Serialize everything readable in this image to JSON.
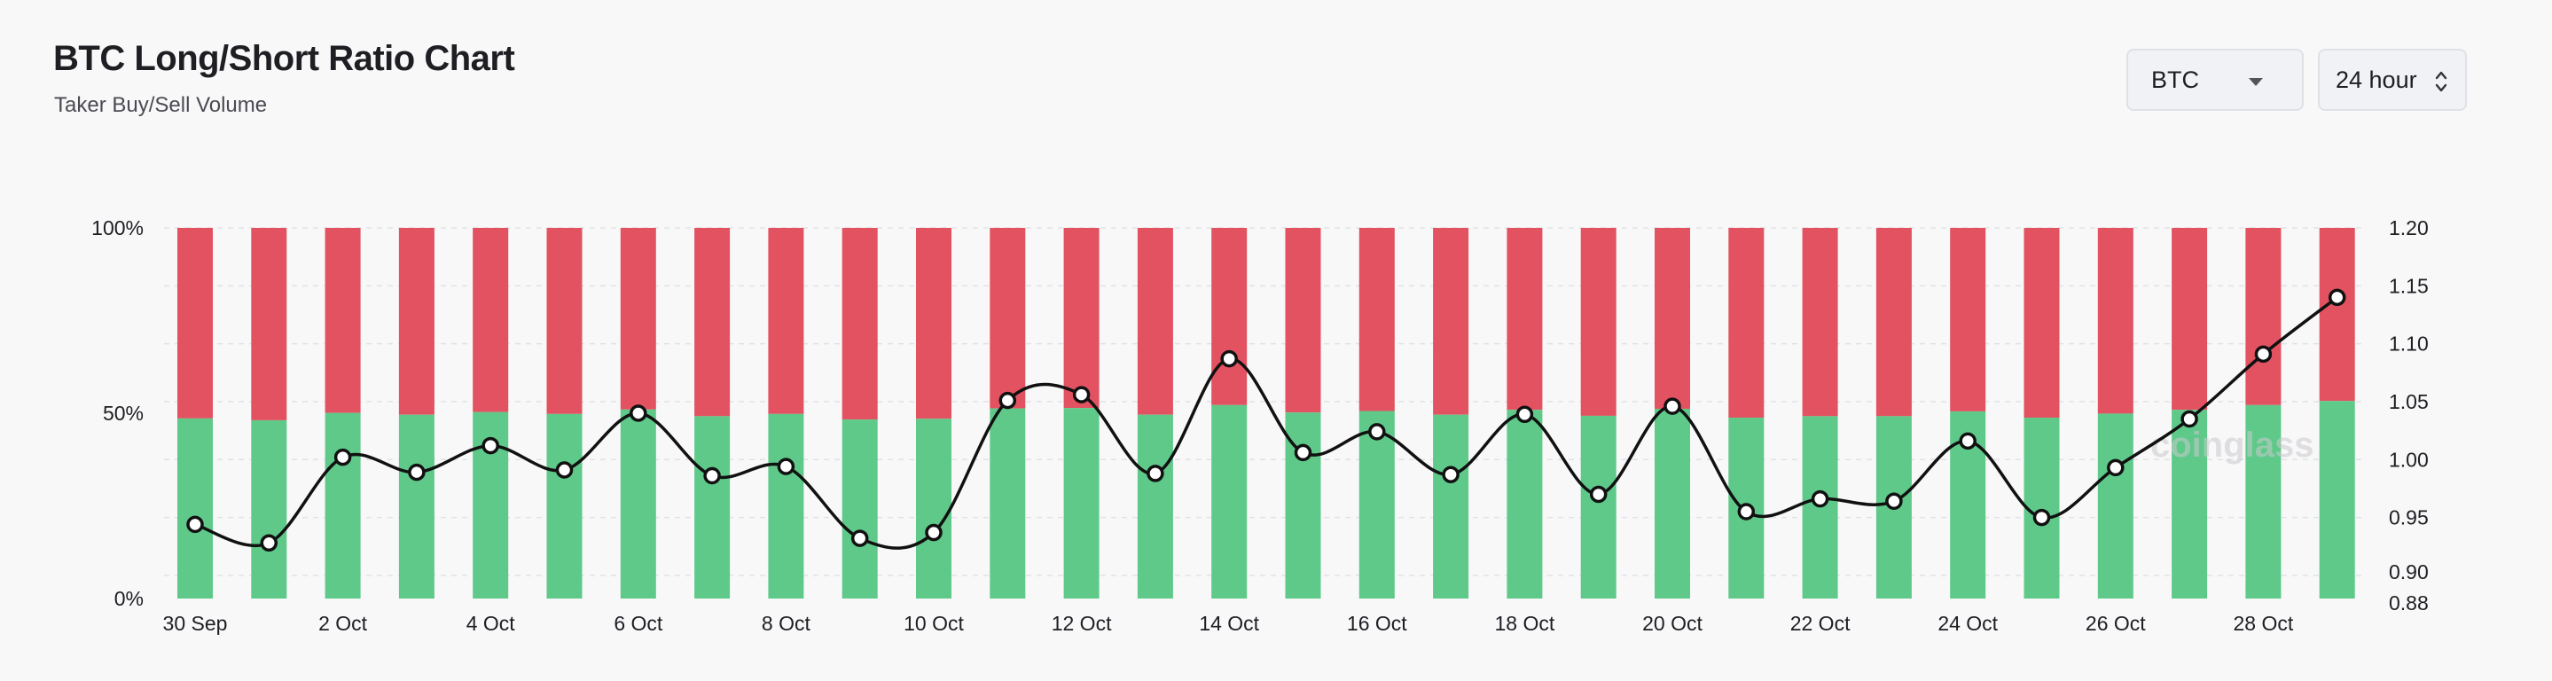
{
  "header": {
    "title": "BTC Long/Short Ratio Chart",
    "subtitle": "Taker Buy/Sell Volume"
  },
  "controls": {
    "symbol": "BTC",
    "interval": "24 hour"
  },
  "watermark": "coinglass",
  "colors": {
    "buy": "#5fc98a",
    "sell": "#e25261",
    "line": "#111111"
  },
  "chart_data": {
    "type": "bar",
    "x": [
      "30 Sep",
      "1 Oct",
      "2 Oct",
      "3 Oct",
      "4 Oct",
      "5 Oct",
      "6 Oct",
      "7 Oct",
      "8 Oct",
      "9 Oct",
      "10 Oct",
      "11 Oct",
      "12 Oct",
      "13 Oct",
      "14 Oct",
      "15 Oct",
      "16 Oct",
      "17 Oct",
      "18 Oct",
      "19 Oct",
      "20 Oct",
      "21 Oct",
      "22 Oct",
      "23 Oct",
      "24 Oct",
      "25 Oct",
      "26 Oct",
      "27 Oct",
      "28 Oct",
      "29 Oct"
    ],
    "x_tick_labels": [
      "30 Sep",
      "2 Oct",
      "4 Oct",
      "6 Oct",
      "8 Oct",
      "10 Oct",
      "12 Oct",
      "14 Oct",
      "16 Oct",
      "18 Oct",
      "20 Oct",
      "22 Oct",
      "24 Oct",
      "26 Oct",
      "28 Oct"
    ],
    "series": [
      {
        "name": "",
        "axis": "left",
        "values": [
          48.6,
          48.1,
          50.1,
          49.6,
          50.3,
          49.8,
          51.0,
          49.2,
          49.8,
          48.3,
          48.5,
          51.3,
          51.4,
          49.6,
          52.2,
          50.2,
          50.6,
          49.6,
          50.9,
          49.3,
          51.2,
          48.8,
          49.2,
          49.2,
          50.5,
          48.8,
          49.9,
          50.9,
          52.2,
          53.3
        ]
      },
      {
        "name": "",
        "axis": "right",
        "type": "line",
        "values": [
          0.944,
          0.928,
          1.002,
          0.989,
          1.012,
          0.991,
          1.04,
          0.986,
          0.994,
          0.932,
          0.937,
          1.051,
          1.056,
          0.988,
          1.087,
          1.006,
          1.024,
          0.987,
          1.039,
          0.97,
          1.046,
          0.955,
          0.966,
          0.964,
          1.016,
          0.95,
          0.993,
          1.035,
          1.091,
          1.14
        ]
      }
    ],
    "y_left": {
      "ticks": [
        "0%",
        "50%",
        "100%"
      ],
      "range": [
        0,
        100
      ]
    },
    "y_right": {
      "ticks": [
        "0.88",
        "0.90",
        "0.95",
        "1.00",
        "1.05",
        "1.10",
        "1.15",
        "1.20"
      ],
      "range": [
        0.88,
        1.2
      ]
    },
    "grid": true
  }
}
